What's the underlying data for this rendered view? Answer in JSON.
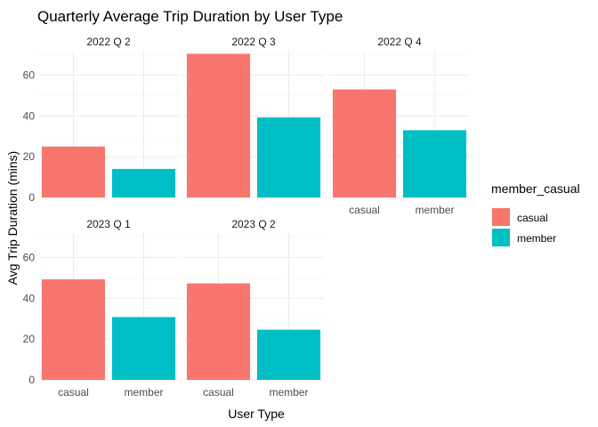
{
  "chart_data": {
    "type": "bar",
    "title": "Quarterly Average Trip Duration by User Type",
    "xlabel": "User Type",
    "ylabel": "Avg Trip Duration (mins)",
    "categories": [
      "casual",
      "member"
    ],
    "ylim": [
      0,
      72
    ],
    "yticks": [
      0,
      20,
      40,
      60
    ],
    "grid": true,
    "legend": {
      "title": "member_casual",
      "position": "right",
      "entries": [
        {
          "name": "casual",
          "color": "#F8766D"
        },
        {
          "name": "member",
          "color": "#00BFC4"
        }
      ]
    },
    "panels": [
      {
        "label": "2022 Q 2",
        "values": [
          25.0,
          14.0
        ]
      },
      {
        "label": "2022 Q 3",
        "values": [
          70.5,
          39.3
        ]
      },
      {
        "label": "2022 Q 4",
        "values": [
          53.0,
          33.0
        ]
      },
      {
        "label": "2023 Q 1",
        "values": [
          49.3,
          30.8
        ]
      },
      {
        "label": "2023 Q 2",
        "values": [
          47.3,
          24.6
        ]
      }
    ]
  }
}
